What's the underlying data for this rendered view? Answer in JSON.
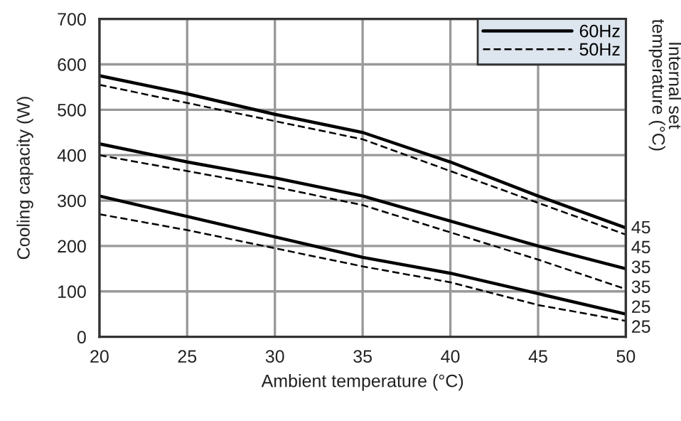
{
  "chart_data": {
    "type": "line",
    "xlabel": "Ambient temperature (°C)",
    "ylabel": "Cooling capacity (W)",
    "y2label": "Internal set\ntemperature (°C)",
    "x": [
      20,
      25,
      30,
      35,
      40,
      45,
      50
    ],
    "series": [
      {
        "name": "60Hz",
        "color": "#000000",
        "line_style": "solid",
        "values": [
          575,
          535,
          490,
          450,
          385,
          310,
          240
        ]
      },
      {
        "name": "50Hz",
        "color": "#000000",
        "line_style": "dashed",
        "values": [
          555,
          515,
          475,
          435,
          365,
          295,
          225
        ]
      },
      {
        "color": "#000000",
        "line_style": "solid",
        "values": [
          425,
          385,
          350,
          310,
          255,
          200,
          150
        ]
      },
      {
        "color": "#000000",
        "line_style": "dashed",
        "values": [
          400,
          365,
          330,
          290,
          230,
          170,
          105
        ]
      },
      {
        "color": "#000000",
        "line_style": "solid",
        "values": [
          310,
          265,
          220,
          175,
          140,
          95,
          50
        ]
      },
      {
        "color": "#000000",
        "line_style": "dashed",
        "values": [
          270,
          235,
          195,
          155,
          120,
          70,
          35
        ]
      }
    ],
    "annotations": [
      "45",
      "45",
      "35",
      "35",
      "25",
      "25"
    ],
    "xlim": [
      20,
      50
    ],
    "xticks": [
      20,
      25,
      30,
      35,
      40,
      45,
      50
    ],
    "ylim": [
      0,
      700
    ],
    "yticks": [
      0,
      100,
      200,
      300,
      400,
      500,
      600,
      700
    ],
    "grid": true,
    "legend": "top right",
    "marker": "none"
  }
}
